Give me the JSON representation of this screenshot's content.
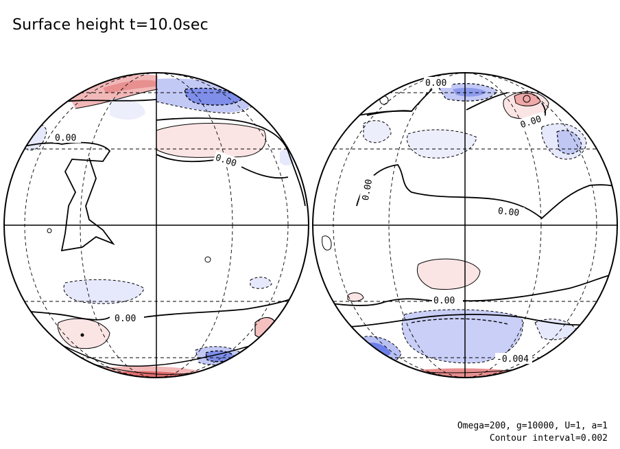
{
  "title": "Surface height t=10.0sec",
  "footer": {
    "params": "Omega=200, g=10000, U=1, a=1",
    "interval": "Contour interval=0.002"
  },
  "colors": {
    "positive": "#fbe4e4",
    "positive_strong": "#e88c8c",
    "negative": "#e6e8fb",
    "negative_mid": "#b9c1f3",
    "negative_strong": "#6d7fe8",
    "line": "#000000"
  },
  "left_globe": {
    "labels": [
      "0.00",
      "0.00",
      "0.00"
    ]
  },
  "right_globe": {
    "labels": [
      "0.00",
      "0.00",
      "0.00",
      "0.00",
      "0.00",
      "-0.004"
    ]
  }
}
